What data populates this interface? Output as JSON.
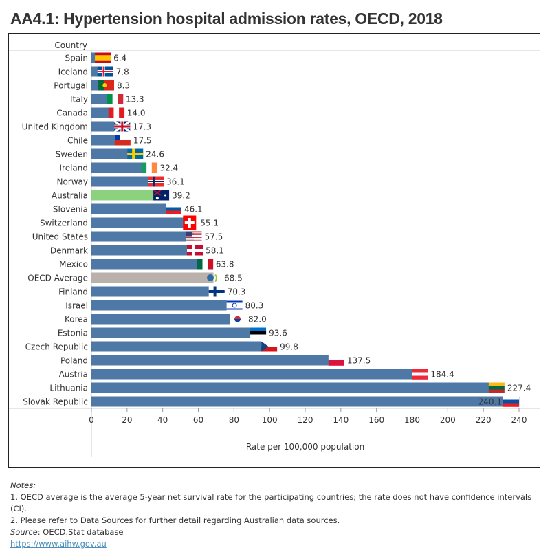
{
  "title": "AA4.1: Hypertension hospital admission rates, OECD, 2018",
  "chart_data": {
    "type": "bar",
    "orientation": "horizontal",
    "title": "AA4.1: Hypertension hospital admission rates, OECD, 2018",
    "ylabel": "Country",
    "xlabel": "Rate per 100,000 population",
    "xlim": [
      0,
      240
    ],
    "xticks": [
      0,
      20,
      40,
      60,
      80,
      100,
      120,
      140,
      160,
      180,
      200,
      220,
      240
    ],
    "grid": false,
    "colors": {
      "default": "#4e79a7",
      "Australia": "#8cd17d",
      "OECD Average": "#bab0ac"
    },
    "categories": [
      "Spain",
      "Iceland",
      "Portugal",
      "Italy",
      "Canada",
      "United Kingdom",
      "Chile",
      "Sweden",
      "Ireland",
      "Norway",
      "Australia",
      "Slovenia",
      "Switzerland",
      "United States",
      "Denmark",
      "Mexico",
      "OECD Average",
      "Finland",
      "Israel",
      "Korea",
      "Estonia",
      "Czech Republic",
      "Poland",
      "Austria",
      "Lithuania",
      "Slovak Republic"
    ],
    "values": [
      6.4,
      7.8,
      8.3,
      13.3,
      14.0,
      17.3,
      17.5,
      24.6,
      32.4,
      36.1,
      39.2,
      46.1,
      55.1,
      57.5,
      58.1,
      63.8,
      68.5,
      70.3,
      80.3,
      82.0,
      93.6,
      99.8,
      137.5,
      184.4,
      227.4,
      240.1
    ],
    "labels": [
      "6.4",
      "7.8",
      "8.3",
      "13.3",
      "14.0",
      "17.3",
      "17.5",
      "24.6",
      "32.4",
      "36.1",
      "39.2",
      "46.1",
      "55.1",
      "57.5",
      "58.1",
      "63.8",
      "68.5",
      "70.3",
      "80.3",
      "82.0",
      "93.6",
      "99.8",
      "137.5",
      "184.4",
      "227.4",
      "240.1"
    ],
    "flags": [
      {
        "icon": "spain-flag-icon",
        "type": "h",
        "colors": [
          "#c60b1e",
          "#ffc400",
          "#ffc400",
          "#c60b1e"
        ]
      },
      {
        "icon": "iceland-flag-icon",
        "type": "cross",
        "colors": [
          "#02529c",
          "#ffffff",
          "#dc1e35"
        ]
      },
      {
        "icon": "portugal-flag-icon",
        "type": "v2",
        "colors": [
          "#046a38",
          "#da291c"
        ]
      },
      {
        "icon": "italy-flag-icon",
        "type": "v",
        "colors": [
          "#009246",
          "#ffffff",
          "#ce2b37"
        ]
      },
      {
        "icon": "canada-flag-icon",
        "type": "v",
        "colors": [
          "#e31c23",
          "#ffffff",
          "#e31c23"
        ]
      },
      {
        "icon": "united-kingdom-flag-icon",
        "type": "uk",
        "colors": [
          "#012169",
          "#ffffff",
          "#c8102e"
        ]
      },
      {
        "icon": "chile-flag-icon",
        "type": "chile",
        "colors": [
          "#0039a6",
          "#ffffff",
          "#d52b1e"
        ]
      },
      {
        "icon": "sweden-flag-icon",
        "type": "cross",
        "colors": [
          "#006aa7",
          "#fecc00",
          "#fecc00"
        ]
      },
      {
        "icon": "ireland-flag-icon",
        "type": "v",
        "colors": [
          "#169b62",
          "#ffffff",
          "#ff883e"
        ]
      },
      {
        "icon": "norway-flag-icon",
        "type": "cross",
        "colors": [
          "#ef2b2d",
          "#ffffff",
          "#002868"
        ]
      },
      {
        "icon": "australia-flag-icon",
        "type": "solid",
        "colors": [
          "#012169"
        ]
      },
      {
        "icon": "slovenia-flag-icon",
        "type": "h",
        "colors": [
          "#ffffff",
          "#005da4",
          "#ed1c24"
        ]
      },
      {
        "icon": "switzerland-flag-icon",
        "type": "swiss",
        "colors": [
          "#ff0000",
          "#ffffff"
        ]
      },
      {
        "icon": "united-states-flag-icon",
        "type": "us",
        "colors": [
          "#b22234",
          "#ffffff",
          "#3c3b6e"
        ]
      },
      {
        "icon": "denmark-flag-icon",
        "type": "cross",
        "colors": [
          "#c60c30",
          "#ffffff",
          "#ffffff"
        ]
      },
      {
        "icon": "mexico-flag-icon",
        "type": "v",
        "colors": [
          "#006847",
          "#ffffff",
          "#ce1126"
        ]
      },
      {
        "icon": "oecd-logo-icon",
        "type": "oecd",
        "colors": [
          "#2e6da4",
          "#9bc53d"
        ]
      },
      {
        "icon": "finland-flag-icon",
        "type": "cross",
        "colors": [
          "#ffffff",
          "#003580",
          "#003580"
        ]
      },
      {
        "icon": "israel-flag-icon",
        "type": "israel",
        "colors": [
          "#ffffff",
          "#0038b8"
        ]
      },
      {
        "icon": "korea-flag-icon",
        "type": "korea",
        "colors": [
          "#ffffff",
          "#cd2e3a",
          "#0047a0"
        ]
      },
      {
        "icon": "estonia-flag-icon",
        "type": "h",
        "colors": [
          "#0072ce",
          "#000000",
          "#ffffff"
        ]
      },
      {
        "icon": "czech-republic-flag-icon",
        "type": "czech",
        "colors": [
          "#ffffff",
          "#d7141a",
          "#11457e"
        ]
      },
      {
        "icon": "poland-flag-icon",
        "type": "h",
        "colors": [
          "#ffffff",
          "#dc143c"
        ]
      },
      {
        "icon": "austria-flag-icon",
        "type": "h",
        "colors": [
          "#ed2939",
          "#ffffff",
          "#ed2939"
        ]
      },
      {
        "icon": "lithuania-flag-icon",
        "type": "h",
        "colors": [
          "#fdb913",
          "#006a44",
          "#c1272d"
        ]
      },
      {
        "icon": "slovak-republic-flag-icon",
        "type": "h",
        "colors": [
          "#ffffff",
          "#0b4ea2",
          "#ee1c25"
        ]
      }
    ]
  },
  "notes": {
    "heading": "Notes:",
    "items": [
      "1. OECD average is the average 5-year net survival rate for the participating countries; the rate does not have confidence intervals (CI).",
      "2. Please refer to Data Sources for further detail regarding Australian data sources."
    ],
    "source_label": "Source",
    "source_text": ": OECD.Stat database",
    "link": "https://www.aihw.gov.au"
  }
}
